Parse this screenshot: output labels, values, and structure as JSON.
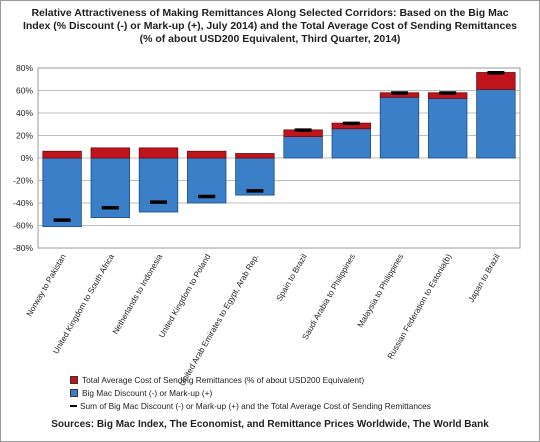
{
  "chart_data": {
    "type": "bar",
    "title": "Relative Attractiveness of Making Remittances Along Selected Corridors: Based on the Big Mac Index (% Discount (-) or Mark-up (+), July 2014) and the Total Average Cost of Sending Remittances (% of about USD200 Equivalent, Third Quarter, 2014)",
    "categories": [
      "Norway to Pakistan",
      "United Kingdom to South Africa",
      "Netherlands to Indonesia",
      "United Kingdom to Poland",
      "United Arab Emirates to Egypt, Arab Rep.",
      "Spain to Brazil",
      "Saudi Arabia to Philippines",
      "Malaysia to Philippines",
      "Russian Federation to Estonia(b)",
      "Japan to Brazil"
    ],
    "series": [
      {
        "name": "Big Mac Discount (-) or Mark-up (+)",
        "values": [
          -61,
          -53,
          -48,
          -40,
          -33,
          19,
          26,
          54,
          53,
          61
        ],
        "color": "#3a7fc8"
      },
      {
        "name": "Total Average Cost of Sending Remittances (% of about USD200 Equivalent)",
        "values": [
          6,
          9,
          9,
          6,
          4,
          6,
          5,
          4,
          5,
          15
        ],
        "color": "#c0141d"
      },
      {
        "name": "Sum of Big Mac Discount (-) or Mark-up (+) and the Total Average Cost of Sending Remittances",
        "values": [
          -55,
          -44,
          -39,
          -34,
          -29,
          25,
          31,
          58,
          58,
          76
        ],
        "color": "#000000"
      }
    ],
    "ylim": [
      -80,
      80
    ],
    "yticks": [
      "80%",
      "60%",
      "40%",
      "20%",
      "0%",
      "-20%",
      "-40%",
      "-60%",
      "-80%"
    ],
    "grid": true,
    "legend_placement": "bottom-left",
    "source": "Sources: Big Mac Index, The Economist, and Remittance Prices Worldwide, The World Bank"
  }
}
